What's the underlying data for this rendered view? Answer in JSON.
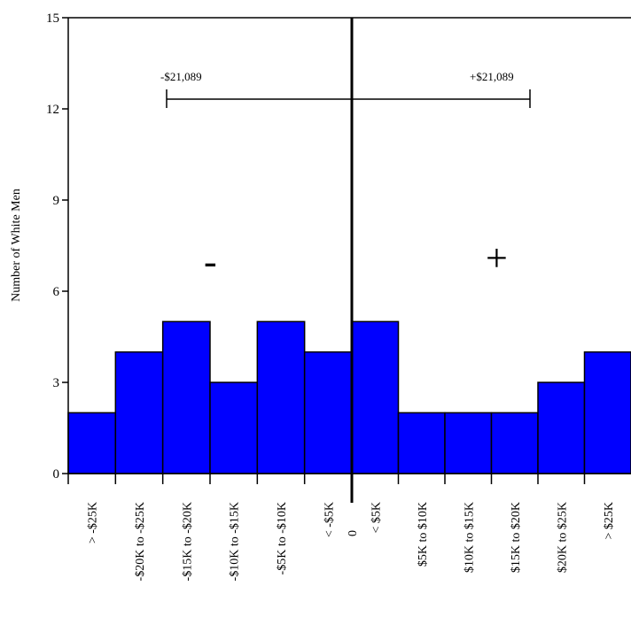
{
  "chart_data": {
    "type": "bar",
    "title": "",
    "xlabel": "",
    "ylabel": "Number of White Men",
    "ylim": [
      0,
      15
    ],
    "yticks": [
      0,
      3,
      6,
      9,
      12,
      15
    ],
    "grid": false,
    "categories": [
      "> -$25K",
      "-$20K to -$25K",
      "-$15K to -$20K",
      "-$10K to -$15K",
      "-$5K to -$10K",
      "< -$5K",
      "< $5K",
      "$5K to $10K",
      "$10K to $15K",
      "$15K to $20K",
      "$20K to $25K",
      "> $25K"
    ],
    "values": [
      2,
      4,
      5,
      3,
      5,
      4,
      5,
      2,
      2,
      2,
      3,
      4
    ],
    "zero_label": "0",
    "bar_color": "#0000ff",
    "annotations": {
      "range_y": 12.3,
      "left_label": "-$21,089",
      "right_label": "+$21,089",
      "minus_sign": "-",
      "plus_sign": "+"
    }
  }
}
